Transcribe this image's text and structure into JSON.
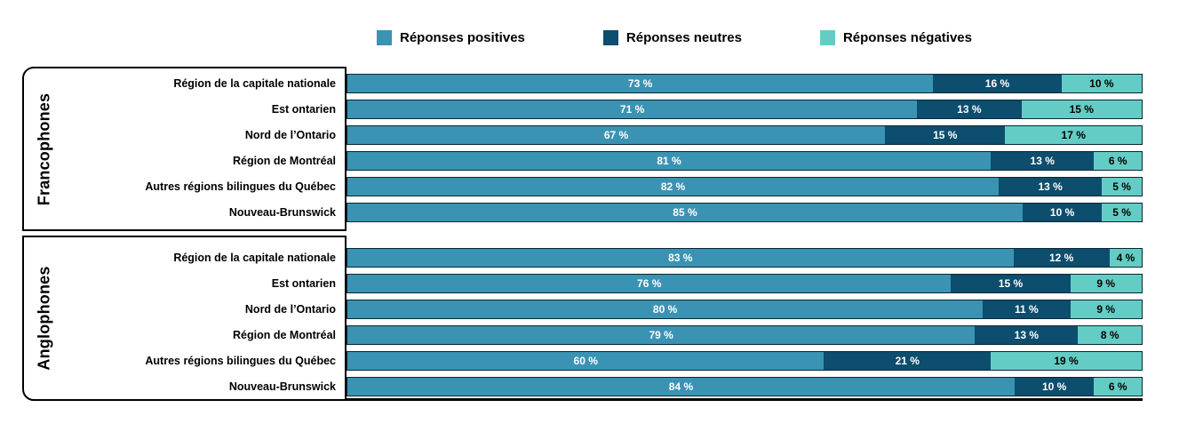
{
  "colors": {
    "positive": "#3A93B3",
    "neutral": "#0D4D6E",
    "negative": "#63CDC5",
    "bar_outline": "#0A2733",
    "box_border": "#000000",
    "value_text_light": "#FFFFFF",
    "value_text_dark": "#000000"
  },
  "legend": {
    "items": [
      {
        "label": "Réponses positives",
        "color_key": "positive"
      },
      {
        "label": "Réponses neutres",
        "color_key": "neutral"
      },
      {
        "label": "Réponses négatives",
        "color_key": "negative"
      }
    ]
  },
  "chart_data": {
    "type": "bar",
    "orientation": "horizontal",
    "stacked": true,
    "normalized_to_full_width": true,
    "unit": "%",
    "value_suffix": " %",
    "series": [
      "Réponses positives",
      "Réponses neutres",
      "Réponses négatives"
    ],
    "series_color_keys": [
      "positive",
      "neutral",
      "negative"
    ],
    "groups": [
      {
        "label": "Francophones",
        "rows": [
          {
            "label": "Région de la capitale nationale",
            "values": [
              73,
              16,
              10
            ]
          },
          {
            "label": "Est ontarien",
            "values": [
              71,
              13,
              15
            ]
          },
          {
            "label": "Nord de l’Ontario",
            "values": [
              67,
              15,
              17
            ]
          },
          {
            "label": "Région de Montréal",
            "values": [
              81,
              13,
              6
            ]
          },
          {
            "label": "Autres régions bilingues du Québec",
            "values": [
              82,
              13,
              5
            ]
          },
          {
            "label": "Nouveau-Brunswick",
            "values": [
              85,
              10,
              5
            ]
          }
        ]
      },
      {
        "label": "Anglophones",
        "rows": [
          {
            "label": "Région de la capitale nationale",
            "values": [
              83,
              12,
              4
            ]
          },
          {
            "label": "Est ontarien",
            "values": [
              76,
              15,
              9
            ]
          },
          {
            "label": "Nord de l’Ontario",
            "values": [
              80,
              11,
              9
            ]
          },
          {
            "label": "Région de Montréal",
            "values": [
              79,
              13,
              8
            ]
          },
          {
            "label": "Autres régions bilingues du Québec",
            "values": [
              60,
              21,
              19
            ]
          },
          {
            "label": "Nouveau-Brunswick",
            "values": [
              84,
              10,
              6
            ]
          }
        ]
      }
    ]
  }
}
